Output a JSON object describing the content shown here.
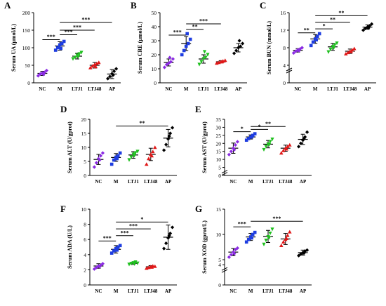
{
  "colors": {
    "NC": "#8a2be2",
    "M": "#1e3de0",
    "LTJ1": "#1fc01f",
    "LTJ48": "#e01818",
    "AP": "#000000",
    "axis": "#000000"
  },
  "groups": [
    "NC",
    "M",
    "LTJ1",
    "LTJ48",
    "AP"
  ],
  "chart_data": [
    {
      "id": "A",
      "type": "scatter",
      "panel_label": "A",
      "ylabel": "Serum UA (μmol/L)",
      "ylim": [
        0,
        200
      ],
      "yticks": [
        0,
        50,
        100,
        150,
        200
      ],
      "categories": [
        "NC",
        "M",
        "LTJ1",
        "LTJ48",
        "AP"
      ],
      "points": [
        [
          20,
          25,
          28,
          30,
          35,
          24
        ],
        [
          93,
          100,
          108,
          112,
          118,
          98
        ],
        [
          68,
          72,
          78,
          82,
          86,
          74
        ],
        [
          43,
          48,
          52,
          55,
          58,
          46
        ],
        [
          12,
          18,
          26,
          33,
          40,
          22
        ]
      ],
      "mean": [
        27,
        105,
        76,
        50,
        25
      ],
      "sd": [
        6,
        12,
        8,
        8,
        13
      ],
      "significance": [
        {
          "from": 1,
          "to": 3,
          "y": 150,
          "label": "***"
        },
        {
          "from": 1,
          "to": 4,
          "y": 172,
          "label": "***"
        },
        {
          "from": 0,
          "to": 1,
          "y": 123,
          "label": "***"
        },
        {
          "from": 1,
          "to": 2,
          "y": 137,
          "label": "***"
        }
      ]
    },
    {
      "id": "B",
      "type": "scatter",
      "panel_label": "B",
      "ylabel": "Serum CRE (μmol/L)",
      "ylim": [
        0,
        50
      ],
      "yticks": [
        0,
        10,
        20,
        30,
        40,
        50
      ],
      "categories": [
        "NC",
        "M",
        "LTJ1",
        "LTJ48",
        "AP"
      ],
      "points": [
        [
          11,
          13,
          14,
          15,
          17,
          18
        ],
        [
          20,
          23,
          26,
          28,
          31,
          35
        ],
        [
          13,
          15,
          17,
          18,
          20,
          22
        ],
        [
          14,
          14.5,
          15,
          15.5,
          16,
          15
        ],
        [
          21,
          23,
          25,
          26,
          28,
          30
        ]
      ],
      "mean": [
        14.5,
        28,
        17,
        15,
        25
      ],
      "sd": [
        2.5,
        5,
        3,
        0.8,
        3
      ],
      "significance": [
        {
          "from": 0,
          "to": 1,
          "y": 34,
          "label": "***"
        },
        {
          "from": 1,
          "to": 2,
          "y": 38,
          "label": "**"
        },
        {
          "from": 1,
          "to": 3,
          "y": 42,
          "label": "***"
        }
      ]
    },
    {
      "id": "C",
      "type": "scatter",
      "panel_label": "C",
      "ylabel": "Serum BUN (mmol/L)",
      "ylim": [
        0,
        16
      ],
      "yticks": [
        0,
        4,
        8,
        12,
        16
      ],
      "axis_break": true,
      "categories": [
        "NC",
        "M",
        "LTJ1",
        "LTJ48",
        "AP"
      ],
      "points": [
        [
          6.8,
          7.2,
          7.5,
          7.7,
          8.0,
          7.3
        ],
        [
          8.5,
          9.3,
          10.0,
          10.6,
          11.2,
          9.8
        ],
        [
          7.0,
          7.6,
          8.2,
          8.6,
          9.0,
          7.9
        ],
        [
          6.6,
          6.9,
          7.2,
          7.5,
          7.8,
          7.1
        ],
        [
          12.0,
          12.4,
          12.7,
          13.0,
          13.4,
          12.5
        ]
      ],
      "mean": [
        7.4,
        10.0,
        8.2,
        7.2,
        12.7
      ],
      "sd": [
        0.4,
        1.0,
        0.8,
        0.5,
        0.5
      ],
      "significance": [
        {
          "from": 0,
          "to": 1,
          "y": 11.4,
          "label": "**"
        },
        {
          "from": 1,
          "to": 2,
          "y": 12.3,
          "label": "*"
        },
        {
          "from": 1,
          "to": 3,
          "y": 13.8,
          "label": "**"
        },
        {
          "from": 1,
          "to": 4,
          "y": 15.3,
          "label": "**"
        }
      ]
    },
    {
      "id": "D",
      "type": "scatter",
      "panel_label": "D",
      "ylabel": "Serum ALT (U/gprot)",
      "ylim": [
        0,
        20
      ],
      "yticks": [
        0,
        5,
        10,
        15,
        20
      ],
      "categories": [
        "NC",
        "M",
        "LTJ1",
        "LTJ48",
        "AP"
      ],
      "points": [
        [
          3,
          4.5,
          6,
          7,
          8,
          5.5
        ],
        [
          4,
          5.5,
          6.5,
          7,
          8,
          6
        ],
        [
          5.5,
          6.5,
          7.5,
          8,
          8.5,
          7
        ],
        [
          4,
          6,
          7.5,
          8.5,
          10,
          7
        ],
        [
          9,
          11,
          13,
          15,
          17,
          14
        ]
      ],
      "mean": [
        5.7,
        6.4,
        7.3,
        7.5,
        13.3
      ],
      "sd": [
        1.8,
        1.4,
        1.2,
        2.2,
        3.1
      ],
      "significance": [
        {
          "from": 1,
          "to": 4,
          "y": 17.6,
          "label": "**"
        }
      ]
    },
    {
      "id": "E",
      "type": "scatter",
      "panel_label": "E",
      "ylabel": "Serum AST (U/gprot)",
      "ylim": [
        0,
        35
      ],
      "yticks": [
        0,
        5,
        10,
        15,
        20,
        25,
        30,
        35
      ],
      "axis_break": true,
      "categories": [
        "NC",
        "M",
        "LTJ1",
        "LTJ48",
        "AP"
      ],
      "points": [
        [
          13,
          15,
          17,
          19,
          21,
          16
        ],
        [
          22,
          23,
          24,
          25,
          26,
          24
        ],
        [
          16,
          18,
          19.5,
          21,
          22.5,
          19
        ],
        [
          14,
          15.5,
          17,
          18,
          19,
          16.5
        ],
        [
          18,
          20,
          22,
          24,
          27,
          23
        ]
      ],
      "mean": [
        17,
        24,
        19.5,
        17,
        22.5
      ],
      "sd": [
        3.2,
        1.3,
        2.3,
        1.9,
        3.2
      ],
      "significance": [
        {
          "from": 0,
          "to": 1,
          "y": 27.3,
          "label": "*"
        },
        {
          "from": 1,
          "to": 2,
          "y": 28.7,
          "label": "*"
        },
        {
          "from": 1,
          "to": 3,
          "y": 30.5,
          "label": "**"
        }
      ]
    },
    {
      "id": "F",
      "type": "scatter",
      "panel_label": "F",
      "ylabel": "Serum ADA (U/L)",
      "ylim": [
        0,
        10
      ],
      "yticks": [
        0,
        2,
        4,
        6,
        8,
        10
      ],
      "categories": [
        "NC",
        "M",
        "LTJ1",
        "LTJ48",
        "AP"
      ],
      "points": [
        [
          2.1,
          2.3,
          2.5,
          2.6,
          2.8,
          2.4
        ],
        [
          4.2,
          4.5,
          4.8,
          5.0,
          5.2,
          4.6
        ],
        [
          2.7,
          2.8,
          2.9,
          3.0,
          2.85,
          2.75
        ],
        [
          2.2,
          2.3,
          2.4,
          2.5,
          2.45,
          2.35
        ],
        [
          4.8,
          5.5,
          6.2,
          6.8,
          7.6,
          6.5
        ]
      ],
      "mean": [
        2.5,
        4.7,
        2.85,
        2.4,
        6.3
      ],
      "sd": [
        0.3,
        0.5,
        0.15,
        0.15,
        1.6
      ],
      "significance": [
        {
          "from": 0,
          "to": 1,
          "y": 5.8,
          "label": "***"
        },
        {
          "from": 1,
          "to": 2,
          "y": 6.5,
          "label": "***"
        },
        {
          "from": 1,
          "to": 3,
          "y": 7.4,
          "label": "***"
        },
        {
          "from": 1,
          "to": 4,
          "y": 8.3,
          "label": "*"
        }
      ]
    },
    {
      "id": "G",
      "type": "scatter",
      "panel_label": "G",
      "ylabel": "Serum XOD (gprot/L)",
      "ylim": [
        0,
        15
      ],
      "yticks": [
        0,
        4,
        5,
        10,
        15
      ],
      "axis_break": true,
      "categories": [
        "NC",
        "M",
        "LTJ1",
        "LTJ48",
        "AP"
      ],
      "points": [
        [
          5.5,
          6.0,
          6.5,
          7.0,
          7.3,
          6.2
        ],
        [
          8.5,
          9.0,
          9.5,
          10.0,
          10.4,
          9.3
        ],
        [
          8.0,
          8.8,
          9.5,
          10.2,
          11.0,
          9.3
        ],
        [
          7.8,
          8.5,
          9.0,
          9.8,
          10.5,
          9.2
        ],
        [
          5.8,
          6.1,
          6.4,
          6.7,
          6.9,
          6.3
        ]
      ],
      "mean": [
        6.5,
        9.5,
        9.6,
        9.1,
        6.4
      ],
      "sd": [
        0.7,
        0.7,
        1.2,
        1.1,
        0.5
      ],
      "significance": [
        {
          "from": 0,
          "to": 1,
          "y": 11.5,
          "label": "***"
        },
        {
          "from": 1,
          "to": 4,
          "y": 12.6,
          "label": "***"
        }
      ]
    }
  ]
}
